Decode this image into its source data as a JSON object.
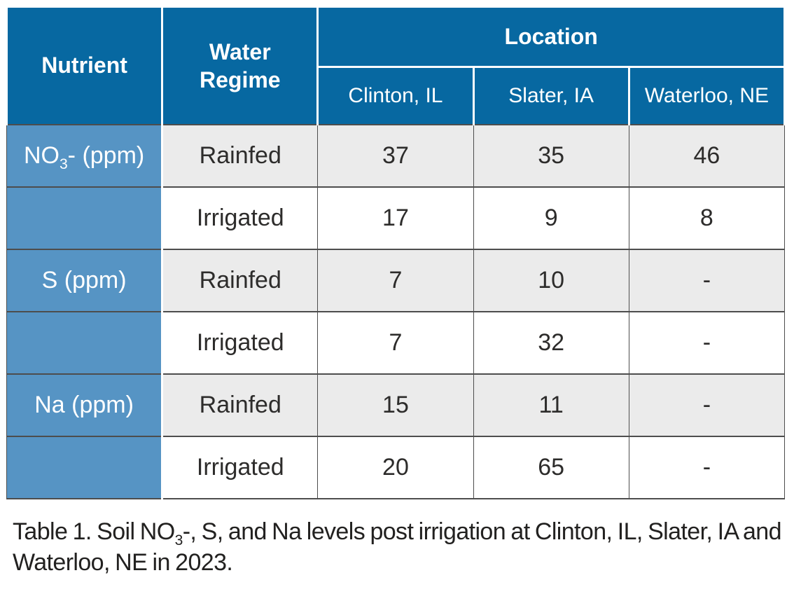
{
  "chart_data": {
    "type": "table",
    "title": "Table 1. Soil NO3-, S, and Na levels post irrigation at Clinton, IL, Slater, IA and Waterloo, NE in 2023.",
    "column_groups": {
      "location_label": "Location",
      "location_columns": [
        "Clinton, IL",
        "Slater, IA",
        "Waterloo, NE"
      ]
    },
    "columns": [
      "Nutrient",
      "Water Regime",
      "Clinton, IL",
      "Slater, IA",
      "Waterloo, NE"
    ],
    "rows": [
      [
        "NO3- (ppm)",
        "Rainfed",
        "37",
        "35",
        "46"
      ],
      [
        "",
        "Irrigated",
        "17",
        "9",
        "8"
      ],
      [
        "S (ppm)",
        "Rainfed",
        "7",
        "10",
        "-"
      ],
      [
        "",
        "Irrigated",
        "7",
        "32",
        "-"
      ],
      [
        "Na (ppm)",
        "Rainfed",
        "15",
        "11",
        "-"
      ],
      [
        "",
        "Irrigated",
        "20",
        "65",
        "-"
      ]
    ]
  },
  "table": {
    "header": {
      "nutrient": "Nutrient",
      "water_regime": "Water Regime",
      "location": "Location",
      "locations": [
        "Clinton, IL",
        "Slater, IA",
        "Waterloo, NE"
      ]
    },
    "rows": [
      {
        "nutrient": {
          "pre": "NO",
          "sub": "3",
          "post": "- (ppm)"
        },
        "regime": "Rainfed",
        "values": [
          "37",
          "35",
          "46"
        ]
      },
      {
        "nutrient": {
          "pre": "",
          "sub": "",
          "post": ""
        },
        "regime": "Irrigated",
        "values": [
          "17",
          "9",
          "8"
        ]
      },
      {
        "nutrient": {
          "pre": "S (ppm)",
          "sub": "",
          "post": ""
        },
        "regime": "Rainfed",
        "values": [
          "7",
          "10",
          "-"
        ]
      },
      {
        "nutrient": {
          "pre": "",
          "sub": "",
          "post": ""
        },
        "regime": "Irrigated",
        "values": [
          "7",
          "32",
          "-"
        ]
      },
      {
        "nutrient": {
          "pre": "Na (ppm)",
          "sub": "",
          "post": ""
        },
        "regime": "Rainfed",
        "values": [
          "15",
          "11",
          "-"
        ]
      },
      {
        "nutrient": {
          "pre": "",
          "sub": "",
          "post": ""
        },
        "regime": "Irrigated",
        "values": [
          "20",
          "65",
          "-"
        ]
      }
    ]
  },
  "caption": {
    "pre": "Table 1. Soil NO",
    "sub": "3",
    "post": "-, S, and Na levels post irrigation at Clinton, IL, Slater, IA and Waterloo, NE in 2023."
  },
  "colors": {
    "header_blue": "#0768a1",
    "nutrient_blue": "#5694c4",
    "row_gray": "#ebebeb",
    "row_white": "#ffffff",
    "border_dark": "#4d4d4d",
    "header_text": "#ffffff",
    "body_text": "#2d2c2b",
    "caption_text": "#222120"
  }
}
